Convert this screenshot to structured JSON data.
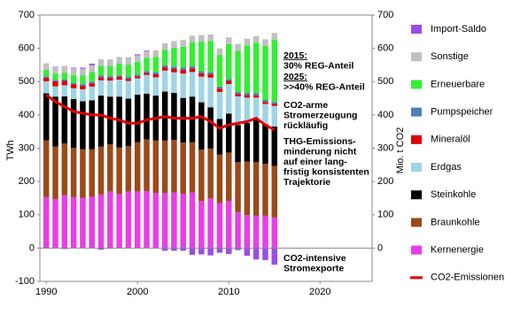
{
  "chart_data": {
    "type": "bar",
    "stacked": true,
    "y_label": "TWh",
    "y2_label": "Mio. t CO2",
    "x": [
      1990,
      1991,
      1992,
      1993,
      1994,
      1995,
      1996,
      1997,
      1998,
      1999,
      2000,
      2001,
      2002,
      2003,
      2004,
      2005,
      2006,
      2007,
      2008,
      2009,
      2010,
      2011,
      2012,
      2013,
      2014,
      2015
    ],
    "xlim": [
      1989.3,
      2025.7
    ],
    "xticks": [
      1990,
      2000,
      2010,
      2020
    ],
    "ylim": [
      -100,
      700
    ],
    "yticks": [
      -100,
      0,
      100,
      200,
      300,
      400,
      500,
      600,
      700
    ],
    "y2lim": [
      -100,
      700
    ],
    "y2ticks": [
      0,
      100,
      200,
      300,
      400,
      500,
      600,
      700
    ],
    "series": [
      {
        "name": "Kernenergie",
        "color": "#e83ee8",
        "values": [
          153,
          147,
          159,
          153,
          151,
          154,
          161,
          170,
          162,
          170,
          170,
          171,
          165,
          165,
          167,
          163,
          167,
          141,
          149,
          135,
          141,
          108,
          99,
          97,
          97,
          92
        ]
      },
      {
        "name": "Braunkohle",
        "color": "#9b4a1a",
        "values": [
          171,
          158,
          155,
          148,
          146,
          143,
          144,
          142,
          140,
          136,
          148,
          155,
          158,
          158,
          158,
          154,
          151,
          155,
          150,
          146,
          146,
          150,
          161,
          161,
          156,
          155
        ]
      },
      {
        "name": "Steinkohle",
        "color": "#000000",
        "values": [
          141,
          150,
          142,
          147,
          144,
          147,
          153,
          143,
          153,
          143,
          143,
          138,
          135,
          147,
          141,
          134,
          137,
          142,
          124,
          107,
          117,
          112,
          116,
          127,
          119,
          118
        ]
      },
      {
        "name": "Erdgas",
        "color": "#9dd5e6",
        "values": [
          36,
          31,
          33,
          32,
          36,
          41,
          46,
          48,
          51,
          53,
          49,
          56,
          55,
          63,
          62,
          73,
          74,
          77,
          89,
          81,
          89,
          86,
          76,
          67,
          61,
          62
        ]
      },
      {
        "name": "Mineralöl",
        "color": "#e00000",
        "values": [
          11,
          15,
          13,
          12,
          11,
          10,
          9,
          9,
          8,
          7,
          6,
          6,
          9,
          10,
          11,
          12,
          11,
          10,
          10,
          10,
          9,
          7,
          8,
          7,
          6,
          6
        ]
      },
      {
        "name": "Pumpspeicher",
        "color": "#4f7fb8",
        "values": [
          4,
          4,
          4,
          4,
          5,
          5,
          5,
          5,
          5,
          5,
          5,
          6,
          6,
          6,
          6,
          6,
          6,
          6,
          6,
          6,
          6,
          6,
          6,
          6,
          6,
          6
        ]
      },
      {
        "name": "Erneuerbare",
        "color": "#33ee33",
        "values": [
          19,
          19,
          21,
          24,
          26,
          29,
          29,
          30,
          35,
          37,
          38,
          39,
          46,
          46,
          57,
          63,
          72,
          89,
          94,
          95,
          105,
          124,
          143,
          152,
          162,
          187
        ]
      },
      {
        "name": "Sonstige",
        "color": "#c0c0c0",
        "values": [
          20,
          20,
          20,
          20,
          20,
          20,
          20,
          20,
          20,
          20,
          20,
          20,
          20,
          20,
          20,
          20,
          20,
          20,
          20,
          20,
          20,
          20,
          20,
          20,
          20,
          20
        ]
      },
      {
        "name": "Import-Saldo",
        "color": "#9b4de8",
        "values": [
          -1,
          1,
          -3,
          2,
          3,
          5,
          -5,
          -2,
          -1,
          1,
          3,
          2,
          -1,
          -8,
          -8,
          -8,
          -20,
          -19,
          -22,
          -14,
          -18,
          -6,
          -23,
          -34,
          -36,
          -50
        ]
      },
      {
        "name": "CO2-Emissionen",
        "color": "#e00000",
        "type": "line",
        "axis": "y2",
        "values": [
          460,
          440,
          425,
          410,
          405,
          400,
          400,
          390,
          385,
          375,
          375,
          385,
          390,
          395,
          390,
          390,
          390,
          395,
          380,
          360,
          370,
          375,
          380,
          390,
          370,
          355
        ]
      }
    ],
    "annotations": [
      [
        "2015:",
        "30% REG-Anteil"
      ],
      [
        "2025:",
        ">>40% REG-Anteil"
      ],
      [
        "CO2-arme",
        "Stromerzeugung",
        "rückläufig"
      ],
      [
        "THG-Emissions-",
        "minderung nicht",
        "auf einer lang-",
        "fristig konsistenten",
        "Trajektorie"
      ],
      [
        "CO2-intensive",
        "Stromexporte"
      ]
    ]
  }
}
